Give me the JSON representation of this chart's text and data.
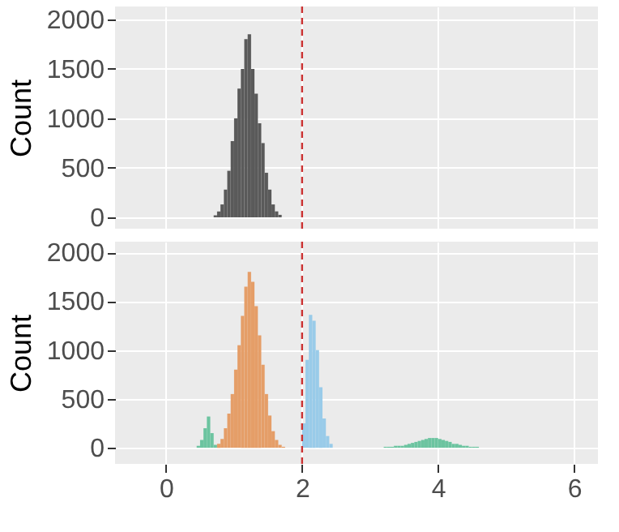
{
  "chart_data": [
    {
      "type": "histogram",
      "ylabel": "Count",
      "xlim": [
        -0.75,
        6.35
      ],
      "xticks": [
        0,
        2,
        4,
        6
      ],
      "ylim": [
        -115,
        2130
      ],
      "yticks": [
        0,
        500,
        1000,
        1500,
        2000
      ],
      "grid": true,
      "tick_labels": "y",
      "bins": [
        0.7,
        0.75,
        0.8,
        0.85,
        0.9,
        0.95,
        1.0,
        1.05,
        1.1,
        1.15,
        1.2,
        1.25,
        1.3,
        1.35,
        1.4,
        1.45,
        1.5,
        1.55,
        1.6,
        1.65,
        1.7
      ],
      "series": [
        {
          "color": "#5a5a5a",
          "values": [
            20,
            60,
            130,
            280,
            470,
            770,
            1000,
            1300,
            1500,
            1800,
            1850,
            1500,
            1250,
            950,
            750,
            450,
            280,
            130,
            60,
            25
          ]
        }
      ],
      "ref_lines": [
        {
          "axis": "x",
          "value": 2,
          "color": "#cc3333",
          "line_style": "dashed"
        }
      ]
    },
    {
      "type": "histogram",
      "ylabel": "Count",
      "xlim": [
        -0.75,
        6.35
      ],
      "xticks": [
        0,
        2,
        4,
        6
      ],
      "ylim": [
        -165,
        2110
      ],
      "yticks": [
        0,
        500,
        1000,
        1500,
        2000
      ],
      "grid": true,
      "bins": [
        0.45,
        0.5,
        0.55,
        0.6,
        0.65,
        0.7,
        0.75,
        0.8,
        0.85,
        0.9,
        0.95,
        1,
        1.05,
        1.1,
        1.15,
        1.2,
        1.25,
        1.3,
        1.35,
        1.4,
        1.45,
        1.5,
        1.55,
        1.6,
        1.65,
        1.7,
        1.75,
        1.8,
        1.85,
        1.9,
        1.95,
        2,
        2.05,
        2.1,
        2.15,
        2.2,
        2.25,
        2.3,
        2.35,
        2.4,
        2.45,
        2.5,
        2.55,
        2.6,
        2.65,
        2.7,
        2.75,
        2.8,
        2.85,
        2.9,
        2.95,
        3,
        3.05,
        3.1,
        3.15,
        3.2,
        3.25,
        3.3,
        3.35,
        3.4,
        3.45,
        3.5,
        3.55,
        3.6,
        3.65,
        3.7,
        3.75,
        3.8,
        3.85,
        3.9,
        3.95,
        4,
        4.05,
        4.1,
        4.15,
        4.2,
        4.25,
        4.3,
        4.35,
        4.4,
        4.45,
        4.5,
        4.55,
        4.6
      ],
      "series": [
        {
          "color": "#6cc4a0",
          "values": [
            20,
            80,
            200,
            320,
            150,
            30,
            null,
            null,
            null,
            null,
            null,
            null,
            null,
            null,
            null,
            null,
            null,
            null,
            null,
            null,
            null,
            null,
            null,
            null,
            null,
            null,
            null,
            null,
            null,
            null,
            null,
            null,
            null,
            null,
            null,
            null,
            null,
            null,
            null,
            null,
            null,
            null,
            null,
            null,
            null,
            null,
            null,
            null,
            null,
            null,
            null,
            null,
            null,
            null,
            null,
            10,
            10,
            10,
            20,
            20,
            20,
            30,
            40,
            50,
            60,
            70,
            80,
            90,
            100,
            100,
            100,
            90,
            80,
            70,
            60,
            40,
            40,
            30,
            20,
            20,
            10,
            10,
            10
          ]
        },
        {
          "color": "#e59e68",
          "values": [
            null,
            null,
            null,
            null,
            null,
            null,
            40,
            90,
            200,
            350,
            550,
            800,
            1050,
            1350,
            1650,
            1800,
            1700,
            1450,
            1150,
            850,
            550,
            330,
            170,
            80,
            30,
            10,
            null,
            null,
            null,
            null,
            null,
            null,
            null,
            null,
            null,
            null,
            null,
            null,
            null,
            null,
            null,
            null,
            null,
            null,
            null,
            null,
            null,
            null,
            null,
            null,
            null,
            null,
            null,
            null,
            null,
            null,
            null,
            null,
            null,
            null,
            null,
            null,
            null,
            null,
            null,
            null,
            null,
            null,
            null,
            null,
            null,
            null,
            null,
            null,
            null,
            null,
            null,
            null,
            null,
            null,
            null,
            null,
            null
          ]
        },
        {
          "color": "#99cbe9",
          "values": [
            null,
            null,
            null,
            null,
            null,
            null,
            null,
            null,
            null,
            null,
            null,
            null,
            null,
            null,
            null,
            null,
            null,
            null,
            null,
            null,
            null,
            null,
            null,
            null,
            null,
            null,
            null,
            null,
            null,
            null,
            null,
            250,
            900,
            1360,
            1300,
            1000,
            620,
            300,
            120,
            40,
            null,
            null,
            null,
            null,
            null,
            null,
            null,
            null,
            null,
            null,
            null,
            null,
            null,
            null,
            null,
            null,
            null,
            null,
            null,
            null,
            null,
            null,
            null,
            null,
            null,
            null,
            null,
            null,
            null,
            null,
            null,
            null,
            null,
            null,
            null,
            null,
            null,
            null,
            null,
            null,
            null,
            null,
            null
          ]
        }
      ],
      "ref_lines": [
        {
          "axis": "x",
          "value": 2,
          "color": "#cc3333",
          "line_style": "dashed"
        }
      ]
    }
  ]
}
